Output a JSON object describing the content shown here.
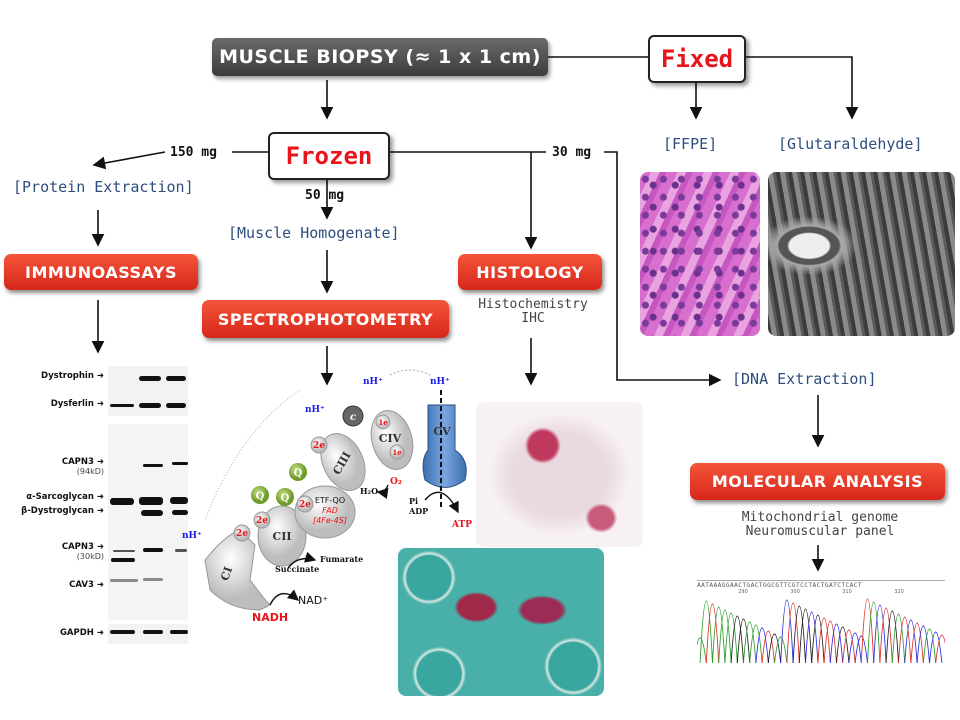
{
  "header": {
    "title": "MUSCLE BIOPSY (≈ 1 x 1 cm)"
  },
  "fixed": {
    "label": "Fixed",
    "ffpe": "[FFPE]",
    "glutaraldehyde": "[Glutaraldehyde]"
  },
  "frozen": {
    "label": "Frozen",
    "amount_left": "150 mg",
    "amount_down": "50 mg",
    "amount_right": "30 mg"
  },
  "protein": {
    "label": "[Protein Extraction]",
    "method": "IMMUNOASSAYS"
  },
  "homogenate": {
    "label": "[Muscle Homogenate]",
    "method": "SPECTROPHOTOMETRY"
  },
  "histology": {
    "method": "HISTOLOGY",
    "sub1": "Histochemistry",
    "sub2": "IHC"
  },
  "dna": {
    "label": "[DNA Extraction]",
    "method": "MOLECULAR ANALYSIS",
    "sub1": "Mitochondrial genome",
    "sub2": "Neuromuscular panel"
  },
  "blot": {
    "labels": [
      {
        "name": "Dystrophin"
      },
      {
        "name": "Dysferlin"
      },
      {
        "name": "CAPN3",
        "sub": "(94kD)"
      },
      {
        "name": "α-Sarcoglycan"
      },
      {
        "name": "β-Dystroglycan"
      },
      {
        "name": "CAPN3",
        "sub": "(30kD)"
      },
      {
        "name": "CAV3"
      },
      {
        "name": "GAPDH"
      }
    ]
  },
  "etc": {
    "complexes": [
      "CI",
      "CII",
      "CIII",
      "CIV",
      "CV"
    ],
    "electron_2e": "2e",
    "electron_1e": "1e",
    "quinone": "Q",
    "cytc": "c",
    "etf_qo": "ETF-QO",
    "fad": "FAD",
    "fes": "[4Fe-4S]",
    "proton": "nH⁺",
    "nadh": "NADH",
    "nad": "NAD⁺",
    "succinate": "Succinate",
    "fumarate": "Fumarate",
    "o2": "O₂",
    "h2o": "H₂O",
    "pi": "Pi",
    "adp": "ADP",
    "atp": "ATP"
  },
  "sequence": {
    "bases": "AATAAAGGAACTGACTGGCGTTCGTCCTACTGATCTCACT",
    "ticks": [
      "290",
      "300",
      "310",
      "320"
    ]
  },
  "colors": {
    "accent_red": "#e8141b",
    "bracket_blue": "#2d4e7e",
    "proton_blue": "#1a1ae6",
    "cv_blue": "#4a7fc0"
  }
}
